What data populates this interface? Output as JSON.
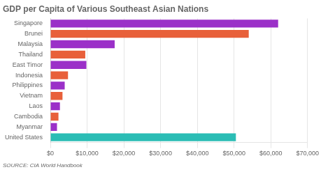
{
  "chart_data": {
    "type": "bar",
    "orientation": "horizontal",
    "title": "GDP per Capita of Various Southeast Asian Nations",
    "annotations": [
      "SOURCE: CIA World Handbook"
    ],
    "categories": [
      "Singapore",
      "Brunei",
      "Malaysia",
      "Thailand",
      "East Timor",
      "Indonesia",
      "Philippines",
      "Vietnam",
      "Laos",
      "Cambodia",
      "Myanmar",
      "United States"
    ],
    "values": [
      62000,
      54000,
      17500,
      9500,
      9800,
      4800,
      3900,
      3300,
      2600,
      2200,
      1800,
      50500
    ],
    "colors": [
      "#9b30c8",
      "#e8603a",
      "#9b30c8",
      "#e8603a",
      "#9b30c8",
      "#e8603a",
      "#9b30c8",
      "#e8603a",
      "#9b30c8",
      "#e8603a",
      "#9b30c8",
      "#2bbdb5"
    ],
    "xlim": [
      0,
      70000
    ],
    "xticks": [
      {
        "value": 0,
        "label": "$0"
      },
      {
        "value": 10000,
        "label": "$10,000"
      },
      {
        "value": 20000,
        "label": "$20,000"
      },
      {
        "value": 30000,
        "label": "$30,000"
      },
      {
        "value": 40000,
        "label": "$40,000"
      },
      {
        "value": 50000,
        "label": "$50,000"
      },
      {
        "value": 60000,
        "label": "$60,000"
      },
      {
        "value": 70000,
        "label": "$70,000"
      }
    ],
    "grid": true
  }
}
